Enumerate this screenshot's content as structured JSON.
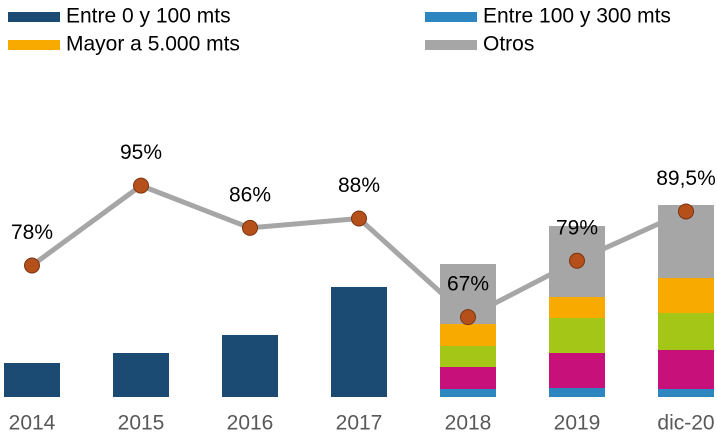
{
  "chart_data": {
    "type": "bar",
    "stacked": true,
    "categories": [
      "2014",
      "2015",
      "2016",
      "2017",
      "2018",
      "2019",
      "dic-20"
    ],
    "ylim": [
      0,
      357
    ],
    "y2lim": [
      50,
      126
    ],
    "series": [
      {
        "name": "Entre 0 y 100 mts",
        "color": "#1b4a72",
        "values": [
          34,
          44,
          62,
          110,
          null,
          null,
          null
        ]
      },
      {
        "name": "Entre 100 y 300 mts",
        "color": "#2e86c1",
        "values": [
          null,
          null,
          null,
          null,
          8,
          9,
          8
        ]
      },
      {
        "color": "#c8107a",
        "values": [
          null,
          null,
          null,
          null,
          22,
          35,
          39
        ]
      },
      {
        "color": "#a3c617",
        "values": [
          null,
          null,
          null,
          null,
          21,
          35,
          37
        ]
      },
      {
        "name": "Mayor a 5.000 mts",
        "color": "#f9aa00",
        "values": [
          null,
          null,
          null,
          null,
          22,
          21,
          35
        ]
      },
      {
        "name": "Otros",
        "color": "#a6a6a6",
        "values": [
          null,
          null,
          null,
          null,
          60,
          71,
          73
        ]
      },
      {
        "type": "line",
        "axis": "y2",
        "color": "#a6a6a6",
        "marker_color": "#b5501a",
        "values": [
          78,
          95,
          86,
          88,
          67,
          79,
          89.5
        ],
        "value_labels": [
          "78%",
          "95%",
          "86%",
          "88%",
          "67%",
          "79%",
          "89,5%"
        ]
      }
    ]
  }
}
